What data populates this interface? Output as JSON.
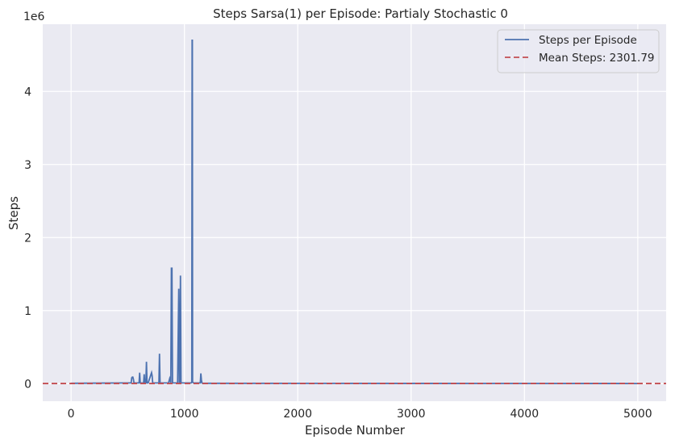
{
  "chart_data": {
    "type": "line",
    "title": "Steps Sarsa(1) per Episode: Partialy Stochastic 0",
    "xlabel": "Episode Number",
    "ylabel": "Steps",
    "y_offset_label": "1e6",
    "xlim": [
      -250,
      5250
    ],
    "ylim": [
      -0.24,
      4.92
    ],
    "x_ticks": [
      0,
      1000,
      2000,
      3000,
      4000,
      5000
    ],
    "x_tick_labels": [
      "0",
      "1000",
      "2000",
      "3000",
      "4000",
      "5000"
    ],
    "y_ticks": [
      0,
      1,
      2,
      3,
      4
    ],
    "y_tick_labels": [
      "0",
      "1",
      "2",
      "3",
      "4"
    ],
    "grid": true,
    "legend_placement": "top-right",
    "colors": {
      "series": "#4c72b0",
      "mean": "#c44e52",
      "plot_background": "#eaeaf2",
      "grid": "#ffffff"
    },
    "series": [
      {
        "name": "Steps per Episode",
        "x": [
          0,
          480,
          530,
          535,
          540,
          545,
          550,
          555,
          600,
          605,
          610,
          640,
          645,
          650,
          660,
          665,
          670,
          680,
          710,
          715,
          720,
          775,
          780,
          785,
          860,
          870,
          880,
          885,
          890,
          895,
          940,
          950,
          955,
          960,
          965,
          970,
          1060,
          1065,
          1068,
          1070,
          1072,
          1080,
          1140,
          1145,
          1150,
          1155,
          1160,
          5000
        ],
        "values": [
          0.005,
          0.01,
          0.01,
          0.08,
          0.09,
          0.09,
          0.06,
          0.01,
          0.01,
          0.15,
          0.01,
          0.01,
          0.13,
          0.01,
          0.01,
          0.3,
          0.01,
          0.01,
          0.15,
          0.11,
          0.01,
          0.01,
          0.41,
          0.01,
          0.01,
          0.07,
          0.01,
          1.58,
          1.58,
          0.01,
          0.01,
          1.3,
          0.01,
          0.01,
          1.48,
          0.01,
          0.01,
          0.02,
          4.7,
          4.7,
          0.02,
          0.01,
          0.01,
          0.14,
          0.05,
          0.01,
          0.005,
          0.002
        ]
      },
      {
        "name": "Mean Steps: 2301.79",
        "constant_y": 0.00230179
      }
    ]
  }
}
